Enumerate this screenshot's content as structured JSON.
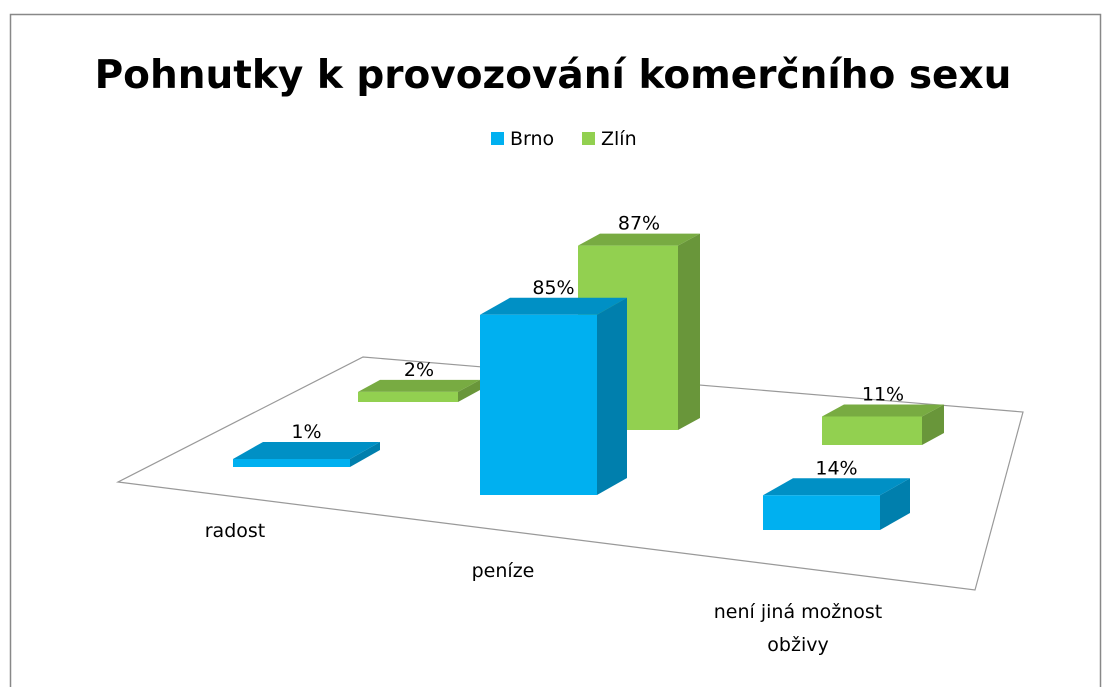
{
  "chart_data": {
    "type": "bar3d",
    "title": "Pohnutky k provozování komerčního sexu",
    "categories": [
      "radost",
      "peníze",
      "není jiná možnost obživy"
    ],
    "series": [
      {
        "name": "Brno",
        "color": "#00b0f0",
        "values": [
          1,
          85,
          14
        ],
        "value_labels": [
          "1%",
          "85%",
          "14%"
        ]
      },
      {
        "name": "Zlín",
        "color": "#92d050",
        "values": [
          2,
          87,
          11
        ],
        "value_labels": [
          "2%",
          "87%",
          "11%"
        ]
      }
    ]
  }
}
